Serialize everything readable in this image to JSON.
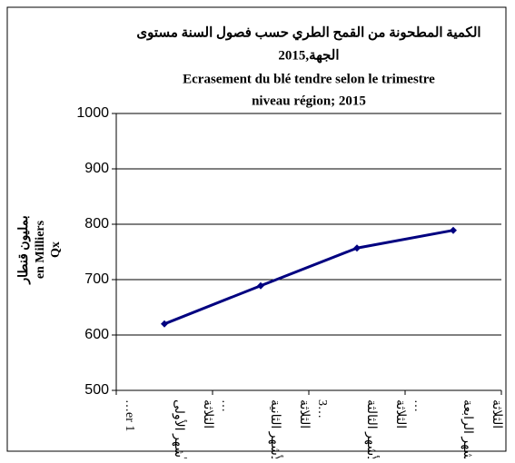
{
  "chart_data": {
    "type": "line",
    "title": [
      "الكمية المطحونة من القمح الطري حسب فصول السنة مستوى",
      "الجهة,2015",
      "Ecrasement du blé tendre selon le trimestre",
      "niveau région; 2015"
    ],
    "ylabel": [
      "بمليون قنطار",
      "en Milliers",
      "Qx"
    ],
    "categories": [
      [
        "…er 1",
        "الأشهر الأولى",
        "الثلاثة"
      ],
      [
        "…",
        "الأشهر الثانية",
        "الثلاثة"
      ],
      [
        "3…",
        "الأشهر الثالثة",
        "الثلاثة"
      ],
      [
        "…",
        "الأشهر الرابعة",
        "الثلاثة"
      ]
    ],
    "series": [
      {
        "name": "Ecrasement",
        "color": "#000080",
        "values": [
          620,
          689,
          757,
          789
        ]
      }
    ],
    "ylim": [
      500,
      1000
    ],
    "yticks": [
      500,
      600,
      700,
      800,
      900,
      1000
    ],
    "grid": true
  }
}
